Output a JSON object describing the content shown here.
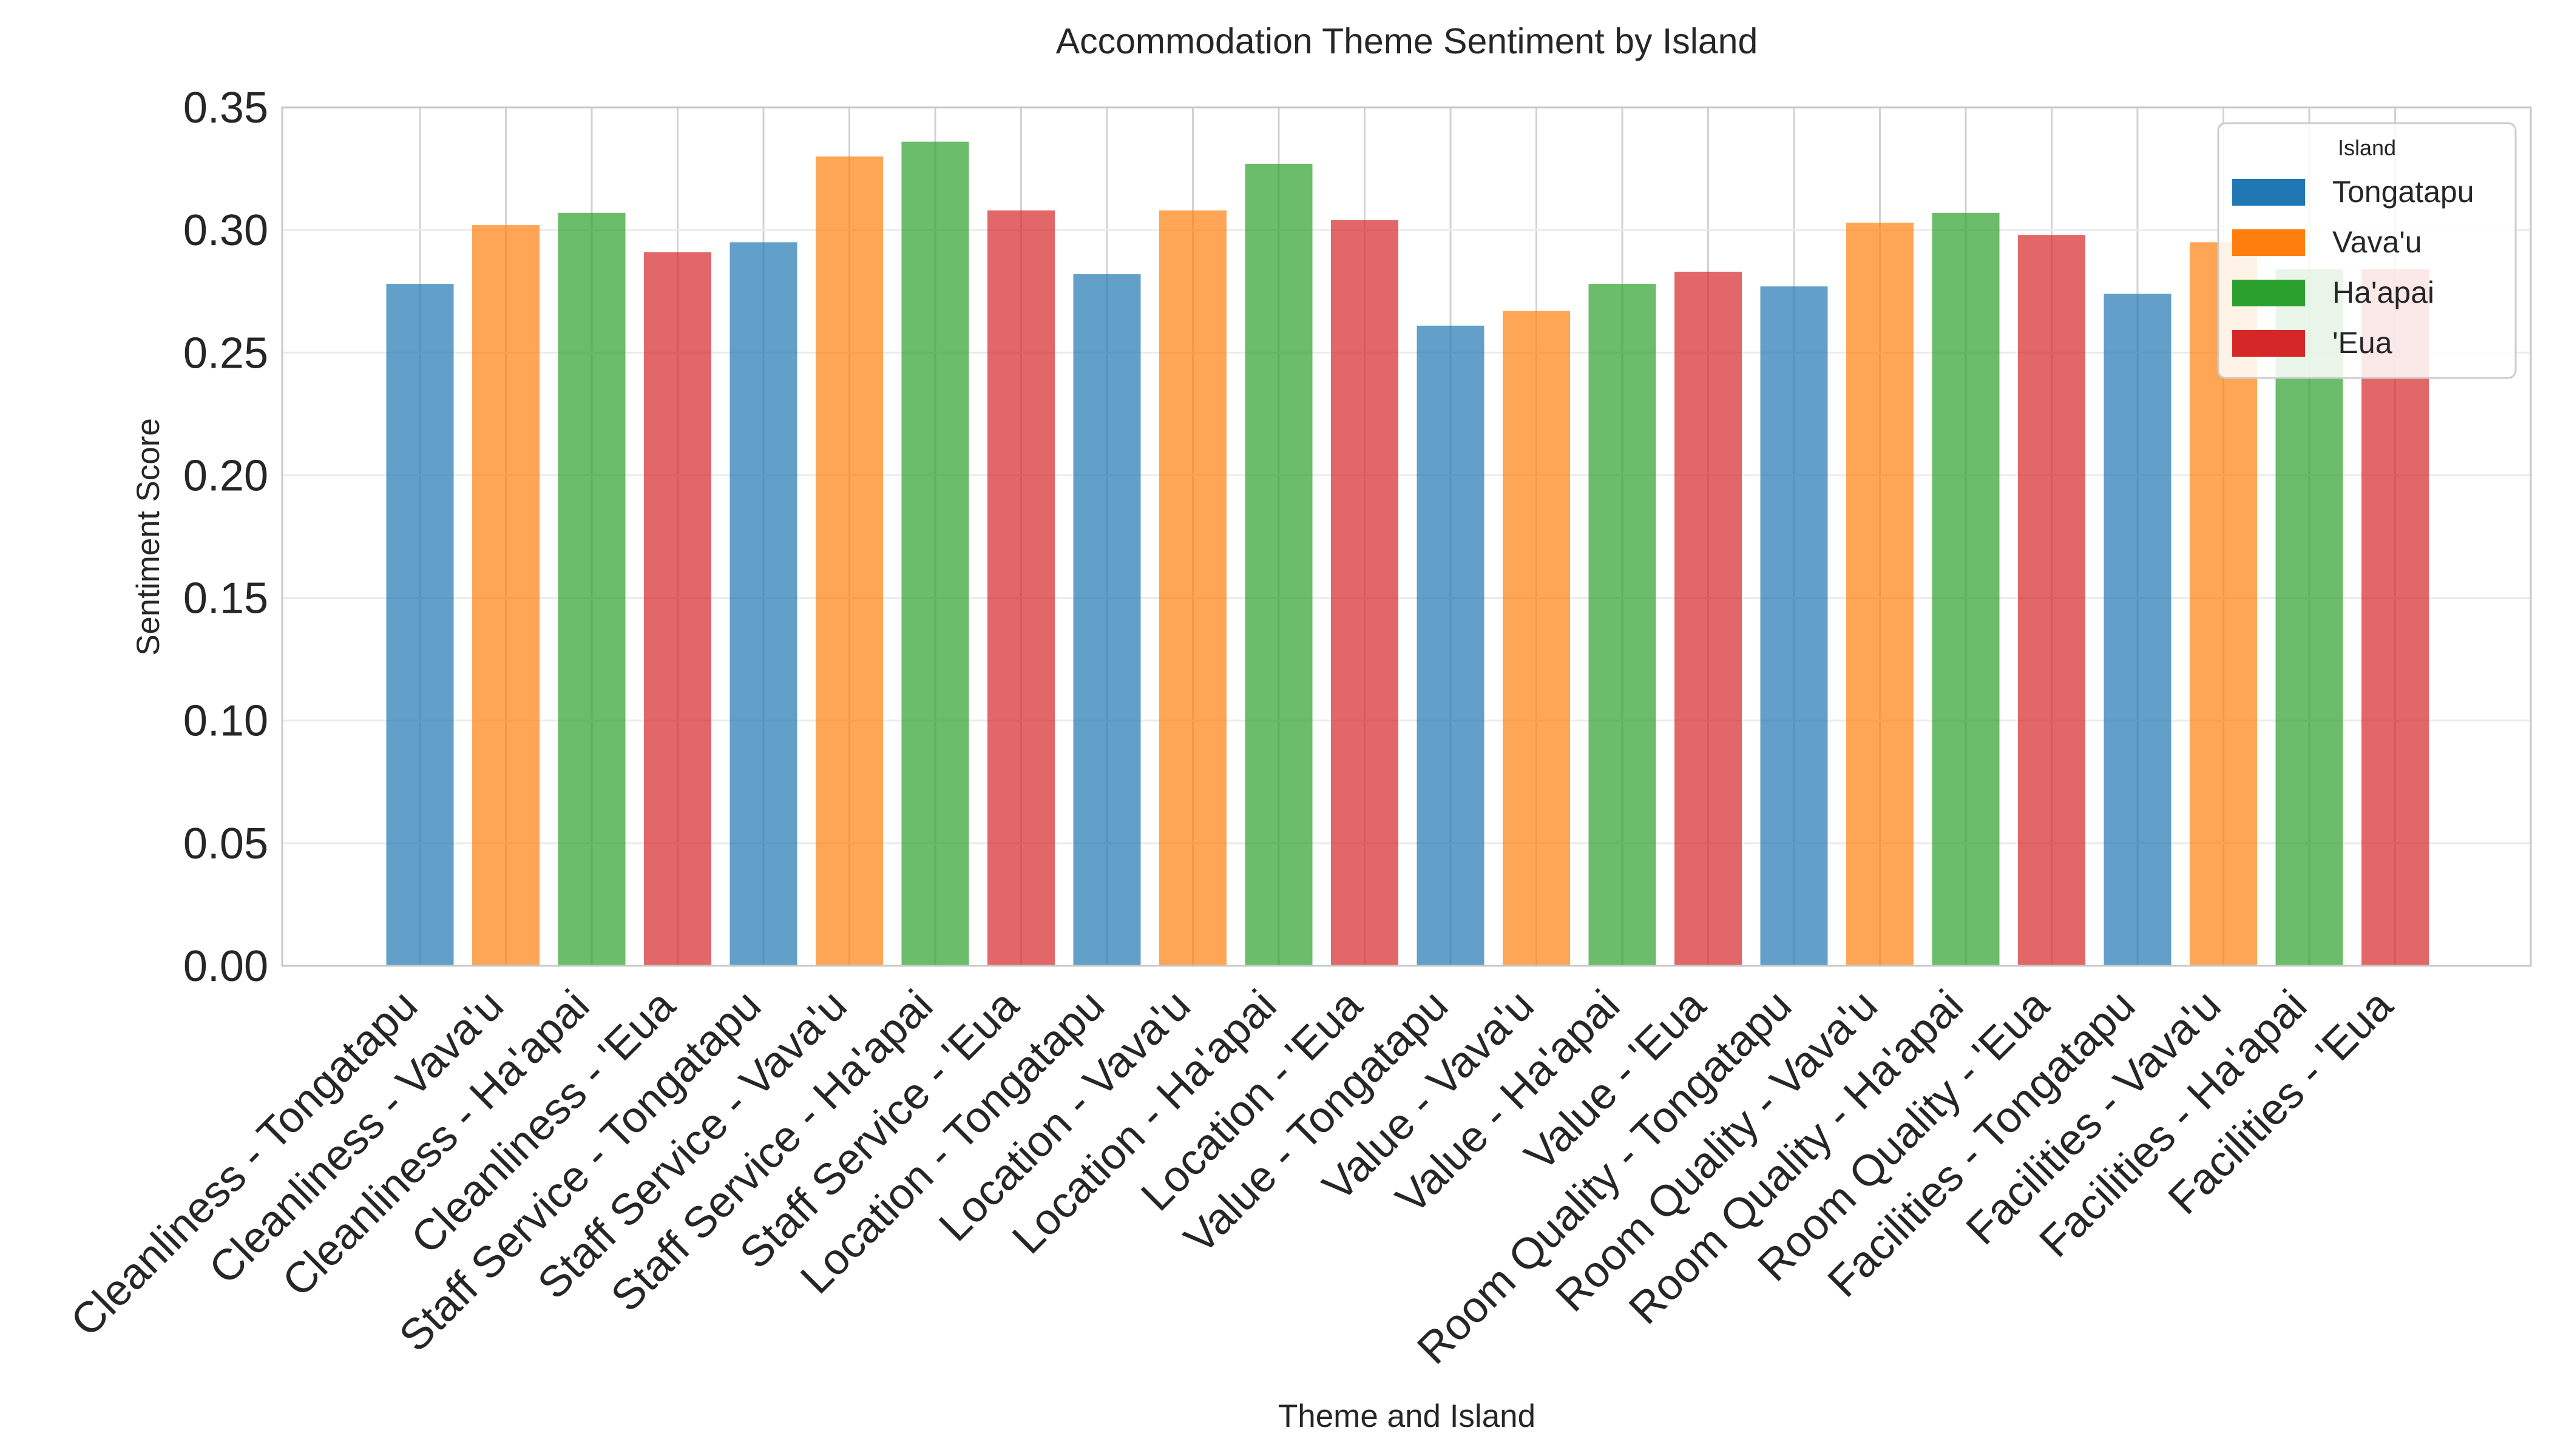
{
  "chart_data": {
    "type": "bar",
    "title": "Accommodation Theme Sentiment by Island",
    "xlabel": "Theme and Island",
    "ylabel": "Sentiment Score",
    "ylim": [
      0,
      0.35
    ],
    "yticks": [
      "0.00",
      "0.05",
      "0.10",
      "0.15",
      "0.20",
      "0.25",
      "0.30",
      "0.35"
    ],
    "grid": true,
    "legend": {
      "title": "Island",
      "placement": "top-right",
      "entries": [
        {
          "label": "Tongatapu",
          "color": "#1f77b4"
        },
        {
          "label": "Vava'u",
          "color": "#ff7f0e"
        },
        {
          "label": "Ha'apai",
          "color": "#2ca02c"
        },
        {
          "label": "'Eua",
          "color": "#d62728"
        }
      ]
    },
    "categories": [
      "Cleanliness - Tongatapu",
      "Cleanliness - Vava'u",
      "Cleanliness - Ha'apai",
      "Cleanliness - 'Eua",
      "Staff Service - Tongatapu",
      "Staff Service - Vava'u",
      "Staff Service - Ha'apai",
      "Staff Service - 'Eua",
      "Location - Tongatapu",
      "Location - Vava'u",
      "Location - Ha'apai",
      "Location - 'Eua",
      "Value - Tongatapu",
      "Value - Vava'u",
      "Value - Ha'apai",
      "Value - 'Eua",
      "Room Quality - Tongatapu",
      "Room Quality - Vava'u",
      "Room Quality - Ha'apai",
      "Room Quality - 'Eua",
      "Facilities - Tongatapu",
      "Facilities - Vava'u",
      "Facilities - Ha'apai",
      "Facilities - 'Eua"
    ],
    "values": [
      0.278,
      0.302,
      0.307,
      0.291,
      0.295,
      0.33,
      0.336,
      0.308,
      0.282,
      0.308,
      0.327,
      0.304,
      0.261,
      0.267,
      0.278,
      0.283,
      0.277,
      0.303,
      0.307,
      0.298,
      0.274,
      0.295,
      0.284,
      0.284
    ],
    "bar_colors": [
      "#1f77b4",
      "#ff7f0e",
      "#2ca02c",
      "#d62728",
      "#1f77b4",
      "#ff7f0e",
      "#2ca02c",
      "#d62728",
      "#1f77b4",
      "#ff7f0e",
      "#2ca02c",
      "#d62728",
      "#1f77b4",
      "#ff7f0e",
      "#2ca02c",
      "#d62728",
      "#1f77b4",
      "#ff7f0e",
      "#2ca02c",
      "#d62728",
      "#1f77b4",
      "#ff7f0e",
      "#2ca02c",
      "#d62728"
    ]
  }
}
